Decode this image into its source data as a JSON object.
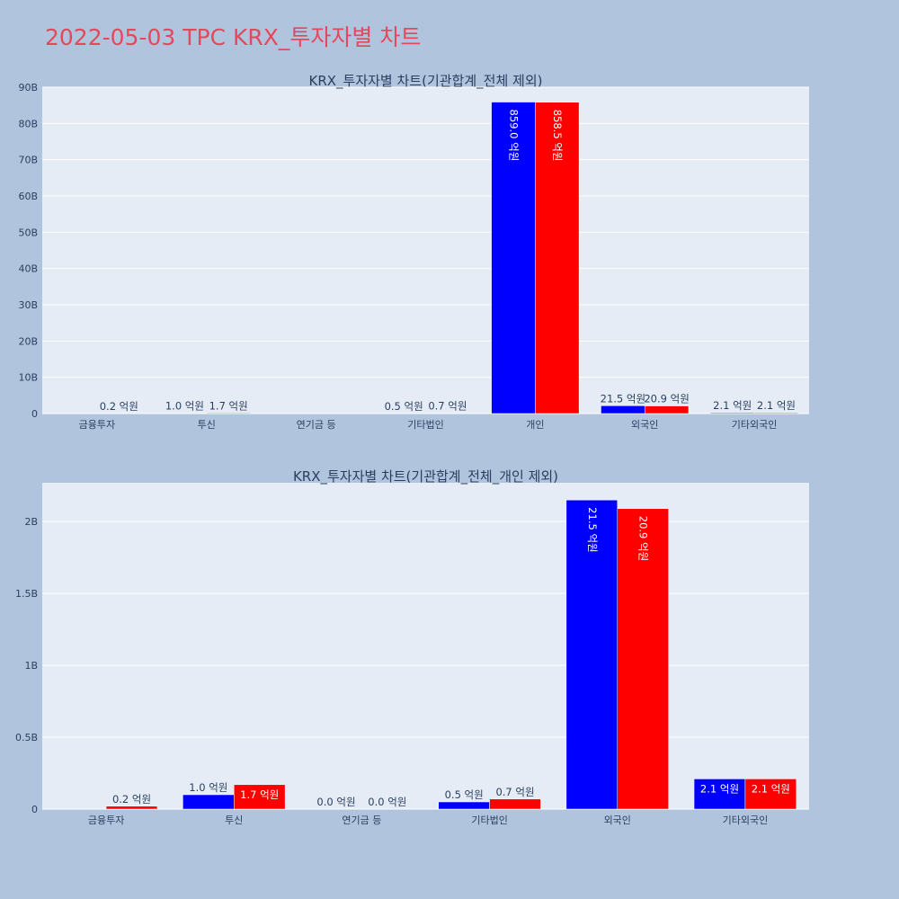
{
  "page": {
    "title": "2022-05-03 TPC KRX_투자자별 차트"
  },
  "colors": {
    "background": "#b0c4de",
    "plot_bg": "#e5ecf6",
    "series_a": "#0000ff",
    "series_b": "#ff0000",
    "title": "#e8475b"
  },
  "chart_data": [
    {
      "type": "bar",
      "title": "KRX_투자자별 차트(기관합계_전체 제외)",
      "categories": [
        "금융투자",
        "투신",
        "연기금 등",
        "기타법인",
        "개인",
        "외국인",
        "기타외국인"
      ],
      "y_unit": "KRW",
      "ylim": [
        0,
        90000000000
      ],
      "y_ticks": [
        0,
        10000000000,
        20000000000,
        30000000000,
        40000000000,
        50000000000,
        60000000000,
        70000000000,
        80000000000,
        90000000000
      ],
      "y_tick_labels": [
        "0",
        "10B",
        "20B",
        "30B",
        "40B",
        "50B",
        "60B",
        "70B",
        "80B",
        "90B"
      ],
      "grid": true,
      "series": [
        {
          "color": "#0000ff",
          "values": [
            null,
            100000000,
            null,
            50000000,
            85900000000,
            2150000000,
            210000000
          ],
          "labels": [
            "",
            "1.0 억원",
            "",
            "0.5 억원",
            "859.0 억원",
            "21.5 억원",
            "2.1 억원"
          ]
        },
        {
          "color": "#ff0000",
          "values": [
            20000000,
            170000000,
            null,
            70000000,
            85850000000,
            2090000000,
            210000000
          ],
          "labels": [
            "0.2 억원",
            "1.7 억원",
            "",
            "0.7 억원",
            "858.5 억원",
            "20.9 억원",
            "2.1 억원"
          ]
        }
      ]
    },
    {
      "type": "bar",
      "title": "KRX_투자자별 차트(기관합계_전체_개인 제외)",
      "categories": [
        "금융투자",
        "투신",
        "연기금 등",
        "기타법인",
        "외국인",
        "기타외국인"
      ],
      "y_unit": "KRW",
      "ylim": [
        0,
        2270000000
      ],
      "y_ticks": [
        0,
        500000000,
        1000000000,
        1500000000,
        2000000000
      ],
      "y_tick_labels": [
        "0",
        "0.5B",
        "1B",
        "1.5B",
        "2B"
      ],
      "grid": true,
      "series": [
        {
          "color": "#0000ff",
          "values": [
            null,
            100000000,
            0,
            50000000,
            2150000000,
            210000000
          ],
          "labels": [
            "",
            "1.0 억원",
            "0.0 억원",
            "0.5 억원",
            "21.5 억원",
            "2.1 억원"
          ]
        },
        {
          "color": "#ff0000",
          "values": [
            20000000,
            170000000,
            0,
            70000000,
            2090000000,
            210000000
          ],
          "labels": [
            "0.2 억원",
            "1.7 억원",
            "0.0 억원",
            "0.7 억원",
            "20.9 억원",
            "2.1 억원"
          ]
        }
      ]
    }
  ]
}
